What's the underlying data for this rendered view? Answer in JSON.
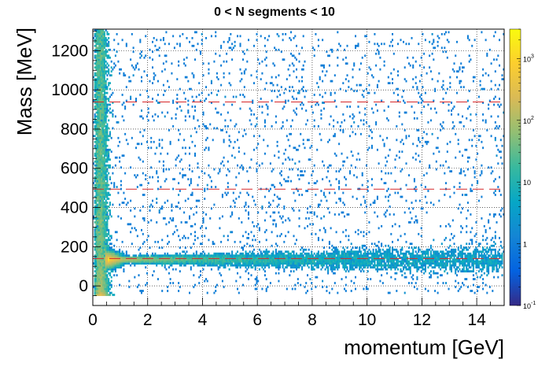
{
  "chart_data": {
    "type": "heatmap",
    "title": "0 < N segments < 10",
    "xlabel": "momentum [GeV]",
    "ylabel": "Mass [MeV]",
    "xlim": [
      0,
      15
    ],
    "ylim": [
      -100,
      1310
    ],
    "xticks": [
      0,
      2,
      4,
      6,
      8,
      10,
      12,
      14
    ],
    "yticks": [
      0,
      200,
      400,
      600,
      800,
      1000,
      1200
    ],
    "grid": true,
    "z_scale": "log",
    "zlim": [
      0.1,
      3000
    ],
    "zticks": [
      {
        "value": 0.1,
        "base": "10",
        "exp": "-1"
      },
      {
        "value": 1,
        "base": "1",
        "exp": ""
      },
      {
        "value": 10,
        "base": "10",
        "exp": ""
      },
      {
        "value": 100,
        "base": "10",
        "exp": "2"
      },
      {
        "value": 1000,
        "base": "10",
        "exp": "3"
      }
    ],
    "colormap": [
      "#352a87",
      "#0363e1",
      "#1485d4",
      "#06a7c6",
      "#38b99e",
      "#92bf73",
      "#d9ba56",
      "#fcce2e",
      "#f9fb0e"
    ],
    "reference_lines": [
      {
        "y": 139.6,
        "color": "#d62728",
        "style": "dashed"
      },
      {
        "y": 493.7,
        "color": "#d62728",
        "style": "dashed"
      },
      {
        "y": 938.3,
        "color": "#d62728",
        "style": "dashed"
      }
    ],
    "bands": [
      {
        "y_mean": 139.6,
        "p_min": 0.55,
        "p_max": 15,
        "intensity": "high at low momentum, tail to 15"
      },
      {
        "y_range": [
          -50,
          1310
        ],
        "p_range": [
          0.05,
          0.65
        ],
        "intensity": "very high, vertical low-momentum band"
      }
    ]
  }
}
